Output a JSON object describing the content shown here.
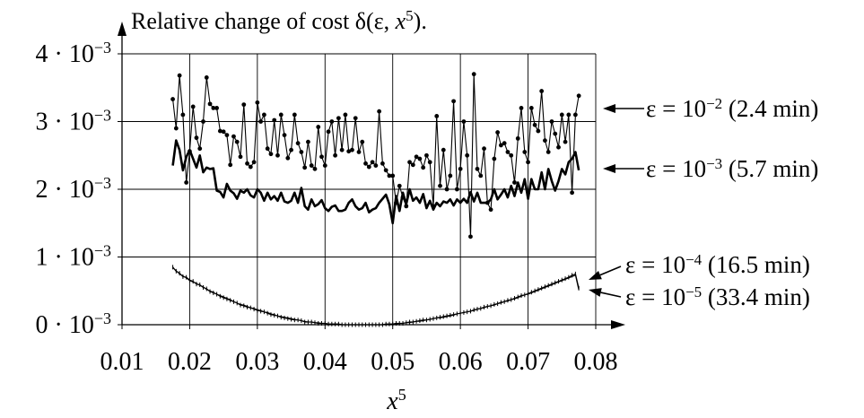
{
  "chart_data": {
    "type": "line",
    "title": {
      "prefix": "Relative change of cost δ(ε, ",
      "var": "x",
      "sup": "5",
      "suffix": ")."
    },
    "xlabel": {
      "var": "x",
      "sup": "5"
    },
    "xlim": [
      0.01,
      0.08
    ],
    "ylim": [
      0,
      0.004
    ],
    "grid": true,
    "x_ticks": [
      {
        "value": 0.01,
        "label": "0.01"
      },
      {
        "value": 0.02,
        "label": "0.02"
      },
      {
        "value": 0.03,
        "label": "0.03"
      },
      {
        "value": 0.04,
        "label": "0.04"
      },
      {
        "value": 0.05,
        "label": "0.05"
      },
      {
        "value": 0.06,
        "label": "0.06"
      },
      {
        "value": 0.07,
        "label": "0.07"
      },
      {
        "value": 0.08,
        "label": "0.08"
      }
    ],
    "y_ticks": [
      {
        "value": 0,
        "mant": "0 · 10",
        "exp": "−3"
      },
      {
        "value": 0.001,
        "mant": "1 · 10",
        "exp": "−3"
      },
      {
        "value": 0.002,
        "mant": "2 · 10",
        "exp": "−3"
      },
      {
        "value": 0.003,
        "mant": "3 · 10",
        "exp": "−3"
      },
      {
        "value": 0.004,
        "mant": "4 · 10",
        "exp": "−3"
      }
    ],
    "series": [
      {
        "name": "ε = 10⁻² (2.4 min)",
        "label": {
          "lhs": "ε = 10",
          "exp": "−2",
          "rhs": " (2.4 min)"
        },
        "style": "thin-dots",
        "x": [
          0.0175,
          0.018,
          0.0185,
          0.019,
          0.0195,
          0.02,
          0.0205,
          0.021,
          0.0215,
          0.022,
          0.0225,
          0.023,
          0.0235,
          0.024,
          0.0245,
          0.025,
          0.0255,
          0.026,
          0.0265,
          0.027,
          0.0275,
          0.028,
          0.0285,
          0.029,
          0.0295,
          0.03,
          0.0305,
          0.031,
          0.0315,
          0.032,
          0.0325,
          0.033,
          0.0335,
          0.034,
          0.0345,
          0.035,
          0.0355,
          0.036,
          0.0365,
          0.037,
          0.0375,
          0.038,
          0.0385,
          0.039,
          0.0395,
          0.04,
          0.0405,
          0.041,
          0.0415,
          0.042,
          0.0425,
          0.043,
          0.0435,
          0.044,
          0.0445,
          0.045,
          0.0455,
          0.046,
          0.0465,
          0.047,
          0.0475,
          0.048,
          0.0485,
          0.049,
          0.0495,
          0.05,
          0.0505,
          0.051,
          0.0515,
          0.052,
          0.0525,
          0.053,
          0.0535,
          0.054,
          0.0545,
          0.055,
          0.0555,
          0.056,
          0.0565,
          0.057,
          0.0575,
          0.058,
          0.0585,
          0.059,
          0.0595,
          0.06,
          0.0605,
          0.061,
          0.0615,
          0.062,
          0.0625,
          0.063,
          0.0635,
          0.064,
          0.0645,
          0.065,
          0.0655,
          0.066,
          0.0665,
          0.067,
          0.0675,
          0.068,
          0.0685,
          0.069,
          0.0695,
          0.07,
          0.0705,
          0.071,
          0.0715,
          0.072,
          0.0725,
          0.073,
          0.0735,
          0.074,
          0.0745,
          0.075,
          0.0755,
          0.076,
          0.0765,
          0.077,
          0.0775
        ],
        "y": [
          0.00333,
          0.0029,
          0.00368,
          0.0031,
          0.0021,
          0.00256,
          0.00322,
          0.00276,
          0.0026,
          0.003,
          0.00365,
          0.00326,
          0.0032,
          0.0032,
          0.00286,
          0.00285,
          0.0028,
          0.00236,
          0.00278,
          0.0027,
          0.00248,
          0.00325,
          0.00238,
          0.00233,
          0.0024,
          0.00328,
          0.003,
          0.0031,
          0.0026,
          0.00252,
          0.00302,
          0.0025,
          0.0031,
          0.0028,
          0.00246,
          0.00258,
          0.0031,
          0.00268,
          0.00255,
          0.00232,
          0.0027,
          0.00235,
          0.0023,
          0.00292,
          0.00248,
          0.00235,
          0.00285,
          0.003,
          0.0025,
          0.00305,
          0.00258,
          0.0031,
          0.00256,
          0.00258,
          0.00305,
          0.00255,
          0.0027,
          0.00238,
          0.00233,
          0.0024,
          0.00235,
          0.00315,
          0.00238,
          0.00228,
          0.0022,
          0.0022,
          0.0018,
          0.00205,
          0.00188,
          0.00175,
          0.0024,
          0.00236,
          0.00248,
          0.00245,
          0.00232,
          0.0025,
          0.0024,
          0.00175,
          0.00308,
          0.00205,
          0.00258,
          0.002,
          0.0022,
          0.0033,
          0.002,
          0.0023,
          0.003,
          0.0025,
          0.0013,
          0.0037,
          0.0023,
          0.0022,
          0.0026,
          0.0018,
          0.0017,
          0.00245,
          0.00284,
          0.00265,
          0.00268,
          0.00255,
          0.0025,
          0.0021,
          0.00275,
          0.0032,
          0.00255,
          0.0024,
          0.0032,
          0.00295,
          0.00286,
          0.00345,
          0.00272,
          0.00255,
          0.003,
          0.00282,
          0.00262,
          0.0031,
          0.0027,
          0.0031,
          0.00195,
          0.0031,
          0.00338
        ]
      },
      {
        "name": "ε = 10⁻³ (5.7 min)",
        "label": {
          "lhs": "ε = 10",
          "exp": "−3",
          "rhs": " (5.7 min)"
        },
        "style": "thick",
        "x": [
          0.0175,
          0.018,
          0.0185,
          0.019,
          0.0195,
          0.02,
          0.0205,
          0.021,
          0.0215,
          0.022,
          0.0225,
          0.023,
          0.0235,
          0.024,
          0.0245,
          0.025,
          0.0255,
          0.026,
          0.0265,
          0.027,
          0.0275,
          0.028,
          0.0285,
          0.029,
          0.0295,
          0.03,
          0.0305,
          0.031,
          0.0315,
          0.032,
          0.0325,
          0.033,
          0.0335,
          0.034,
          0.0345,
          0.035,
          0.0355,
          0.036,
          0.0365,
          0.037,
          0.0375,
          0.038,
          0.0385,
          0.039,
          0.0395,
          0.04,
          0.0405,
          0.041,
          0.0415,
          0.042,
          0.0425,
          0.043,
          0.0435,
          0.044,
          0.0445,
          0.045,
          0.0455,
          0.046,
          0.0465,
          0.047,
          0.0475,
          0.048,
          0.0485,
          0.049,
          0.0495,
          0.05,
          0.0505,
          0.051,
          0.0515,
          0.052,
          0.0525,
          0.053,
          0.0535,
          0.054,
          0.0545,
          0.055,
          0.0555,
          0.056,
          0.0565,
          0.057,
          0.0575,
          0.058,
          0.0585,
          0.059,
          0.0595,
          0.06,
          0.0605,
          0.061,
          0.0615,
          0.062,
          0.0625,
          0.063,
          0.0635,
          0.064,
          0.0645,
          0.065,
          0.0655,
          0.066,
          0.0665,
          0.067,
          0.0675,
          0.068,
          0.0685,
          0.069,
          0.0695,
          0.07,
          0.0705,
          0.071,
          0.0715,
          0.072,
          0.0725,
          0.073,
          0.0735,
          0.074,
          0.0745,
          0.075,
          0.0755,
          0.076,
          0.0765,
          0.077,
          0.0775
        ],
        "y": [
          0.00235,
          0.00272,
          0.00258,
          0.00228,
          0.00248,
          0.00258,
          0.00245,
          0.00232,
          0.0025,
          0.00225,
          0.00232,
          0.0023,
          0.00231,
          0.00198,
          0.00196,
          0.00188,
          0.00208,
          0.00198,
          0.00194,
          0.00186,
          0.00198,
          0.00195,
          0.002,
          0.00191,
          0.00188,
          0.002,
          0.00195,
          0.00183,
          0.00195,
          0.00185,
          0.0019,
          0.00183,
          0.00195,
          0.00182,
          0.0018,
          0.00183,
          0.00195,
          0.0018,
          0.00202,
          0.00175,
          0.0017,
          0.00185,
          0.00175,
          0.00178,
          0.00184,
          0.00172,
          0.00168,
          0.00174,
          0.00176,
          0.00168,
          0.00168,
          0.0017,
          0.0018,
          0.00185,
          0.00175,
          0.0017,
          0.00172,
          0.0018,
          0.00166,
          0.0017,
          0.00172,
          0.0018,
          0.00186,
          0.00192,
          0.00178,
          0.0015,
          0.0019,
          0.00168,
          0.00195,
          0.00178,
          0.002,
          0.00183,
          0.00188,
          0.0018,
          0.00193,
          0.00172,
          0.00183,
          0.0017,
          0.0018,
          0.00175,
          0.00182,
          0.0018,
          0.00185,
          0.00176,
          0.00185,
          0.0018,
          0.00186,
          0.0018,
          0.00196,
          0.00182,
          0.00195,
          0.0018,
          0.0018,
          0.0018,
          0.00185,
          0.002,
          0.00185,
          0.00192,
          0.002,
          0.00188,
          0.00205,
          0.0019,
          0.0021,
          0.00195,
          0.00215,
          0.00186,
          0.00215,
          0.002,
          0.002,
          0.00225,
          0.002,
          0.0023,
          0.00212,
          0.00198,
          0.00212,
          0.0023,
          0.00222,
          0.0024,
          0.00245,
          0.00255,
          0.00228
        ]
      },
      {
        "name": "ε = 10⁻⁴ (16.5 min)",
        "label": {
          "lhs": "ε = 10",
          "exp": "−4",
          "rhs": " (16.5 min)"
        },
        "style": "thin-ticks",
        "x": [
          0.0175,
          0.018,
          0.0185,
          0.019,
          0.0195,
          0.02,
          0.0205,
          0.021,
          0.0215,
          0.022,
          0.0225,
          0.023,
          0.0235,
          0.024,
          0.0245,
          0.025,
          0.0255,
          0.026,
          0.0265,
          0.027,
          0.0275,
          0.028,
          0.0285,
          0.029,
          0.0295,
          0.03,
          0.0305,
          0.031,
          0.0315,
          0.032,
          0.0325,
          0.033,
          0.0335,
          0.034,
          0.0345,
          0.035,
          0.0355,
          0.036,
          0.0365,
          0.037,
          0.0375,
          0.038,
          0.0385,
          0.039,
          0.0395,
          0.04,
          0.0405,
          0.041,
          0.0415,
          0.042,
          0.0425,
          0.043,
          0.0435,
          0.044,
          0.0445,
          0.045,
          0.0455,
          0.046,
          0.0465,
          0.047,
          0.0475,
          0.048,
          0.0485,
          0.049,
          0.0495,
          0.05,
          0.0505,
          0.051,
          0.0515,
          0.052,
          0.0525,
          0.053,
          0.0535,
          0.054,
          0.0545,
          0.055,
          0.0555,
          0.056,
          0.0565,
          0.057,
          0.0575,
          0.058,
          0.0585,
          0.059,
          0.0595,
          0.06,
          0.0605,
          0.061,
          0.0615,
          0.062,
          0.0625,
          0.063,
          0.0635,
          0.064,
          0.0645,
          0.065,
          0.0655,
          0.066,
          0.0665,
          0.067,
          0.0675,
          0.068,
          0.0685,
          0.069,
          0.0695,
          0.07,
          0.0705,
          0.071,
          0.0715,
          0.072,
          0.0725,
          0.073,
          0.0735,
          0.074,
          0.0745,
          0.075,
          0.0755,
          0.076,
          0.0765,
          0.077,
          0.0775
        ],
        "y": [
          0.00085,
          0.00079,
          0.00076,
          0.00071,
          0.0007,
          0.00066,
          0.00064,
          0.0006,
          0.00059,
          0.00055,
          0.00053,
          0.00049,
          0.00047,
          0.00045,
          0.00042,
          0.0004,
          0.00038,
          0.00036,
          0.00034,
          0.00032,
          0.00029,
          0.00028,
          0.00026,
          0.00025,
          0.00023,
          0.00021,
          0.0002,
          0.00019,
          0.00017,
          0.00015,
          0.00014,
          0.00013,
          0.00011,
          0.0001,
          9e-05,
          8e-05,
          7e-05,
          7e-05,
          6e-05,
          4e-05,
          4e-05,
          4e-05,
          3e-05,
          2e-05,
          2e-05,
          2e-05,
          1e-05,
          1e-05,
          1e-05,
          1e-05,
          0.0,
          0.0,
          0.0,
          0.0,
          0.0,
          0.0,
          0.0,
          0.0,
          0.0,
          0.0,
          0.0,
          0.0,
          0.0,
          1e-05,
          1e-05,
          1e-05,
          2e-05,
          2e-05,
          2e-05,
          3e-05,
          4e-05,
          4e-05,
          5e-05,
          6e-05,
          7e-05,
          7e-05,
          8e-05,
          9e-05,
          0.0001,
          0.00011,
          0.00012,
          0.00013,
          0.00014,
          0.00015,
          0.00016,
          0.00017,
          0.00018,
          0.00019,
          0.0002,
          0.00022,
          0.00023,
          0.00024,
          0.00026,
          0.00027,
          0.00028,
          0.0003,
          0.00031,
          0.00033,
          0.00034,
          0.00036,
          0.00037,
          0.00039,
          0.00041,
          0.00043,
          0.00044,
          0.00046,
          0.00048,
          0.0005,
          0.00052,
          0.00054,
          0.00056,
          0.00058,
          0.0006,
          0.00062,
          0.00064,
          0.00066,
          0.00068,
          0.0007,
          0.00073,
          0.00075,
          0.00054
        ]
      },
      {
        "name": "ε = 10⁻⁵ (33.4 min)",
        "label": {
          "lhs": "ε = 10",
          "exp": "−5",
          "rhs": " (33.4 min)"
        },
        "style": "thin",
        "x": [
          0.0175,
          0.018,
          0.0185,
          0.019,
          0.0195,
          0.02,
          0.0205,
          0.021,
          0.0215,
          0.022,
          0.0225,
          0.023,
          0.0235,
          0.024,
          0.0245,
          0.025,
          0.0255,
          0.026,
          0.0265,
          0.027,
          0.0275,
          0.028,
          0.0285,
          0.029,
          0.0295,
          0.03,
          0.0305,
          0.031,
          0.0315,
          0.032,
          0.0325,
          0.033,
          0.0335,
          0.034,
          0.0345,
          0.035,
          0.0355,
          0.036,
          0.0365,
          0.037,
          0.0375,
          0.038,
          0.0385,
          0.039,
          0.0395,
          0.04,
          0.0405,
          0.041,
          0.0415,
          0.042,
          0.0425,
          0.043,
          0.0435,
          0.044,
          0.0445,
          0.045,
          0.0455,
          0.046,
          0.0465,
          0.047,
          0.0475,
          0.048,
          0.0485,
          0.049,
          0.0495,
          0.05,
          0.0505,
          0.051,
          0.0515,
          0.052,
          0.0525,
          0.053,
          0.0535,
          0.054,
          0.0545,
          0.055,
          0.0555,
          0.056,
          0.0565,
          0.057,
          0.0575,
          0.058,
          0.0585,
          0.059,
          0.0595,
          0.06,
          0.0605,
          0.061,
          0.0615,
          0.062,
          0.0625,
          0.063,
          0.0635,
          0.064,
          0.0645,
          0.065,
          0.0655,
          0.066,
          0.0665,
          0.067,
          0.0675,
          0.068,
          0.0685,
          0.069,
          0.0695,
          0.07,
          0.0705,
          0.071,
          0.0715,
          0.072,
          0.0725,
          0.073,
          0.0735,
          0.074,
          0.0745,
          0.075,
          0.0755,
          0.076,
          0.0765,
          0.077,
          0.0775
        ],
        "y": [
          0.00084,
          0.0008,
          0.00075,
          0.00072,
          0.00069,
          0.00065,
          0.00063,
          0.00061,
          0.00058,
          0.00056,
          0.00052,
          0.0005,
          0.00048,
          0.00045,
          0.00043,
          0.00041,
          0.00039,
          0.00037,
          0.00034,
          0.00032,
          0.0003,
          0.00029,
          0.00027,
          0.00025,
          0.00024,
          0.00022,
          0.00021,
          0.00019,
          0.00018,
          0.00016,
          0.00015,
          0.00013,
          0.00012,
          0.00011,
          0.0001,
          9e-05,
          8e-05,
          7e-05,
          6e-05,
          5e-05,
          4e-05,
          4e-05,
          3e-05,
          3e-05,
          2e-05,
          2e-05,
          1e-05,
          1e-05,
          1e-05,
          1e-05,
          0.0,
          0.0,
          0.0,
          0.0,
          0.0,
          0.0,
          0.0,
          0.0,
          0.0,
          0.0,
          0.0,
          0.0,
          0.0,
          1e-05,
          1e-05,
          1e-05,
          1e-05,
          2e-05,
          2e-05,
          3e-05,
          3e-05,
          4e-05,
          5e-05,
          5e-05,
          6e-05,
          7e-05,
          8e-05,
          9e-05,
          0.0001,
          0.0001,
          0.00011,
          0.00012,
          0.00013,
          0.00014,
          0.00016,
          0.00017,
          0.00018,
          0.00019,
          0.0002,
          0.00021,
          0.00023,
          0.00024,
          0.00025,
          0.00027,
          0.00028,
          0.00029,
          0.00031,
          0.00032,
          0.00034,
          0.00035,
          0.00037,
          0.00038,
          0.0004,
          0.00042,
          0.00044,
          0.00045,
          0.00047,
          0.00049,
          0.00051,
          0.00053,
          0.00055,
          0.00057,
          0.00059,
          0.00061,
          0.00063,
          0.00065,
          0.00067,
          0.00069,
          0.00071,
          0.00073,
          0.00051
        ]
      }
    ]
  }
}
